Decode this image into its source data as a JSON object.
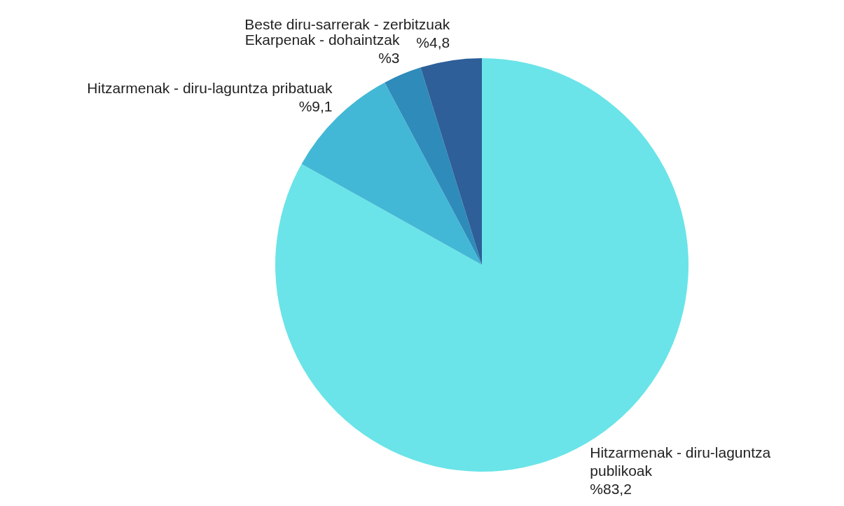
{
  "chart_data": {
    "type": "pie",
    "categories": [
      "Hitzarmenak - diru-laguntza publikoak",
      "Hitzarmenak - diru-laguntza pribatuak",
      "Ekarpenak - dohaintzak",
      "Beste diru-sarrerak - zerbitzuak"
    ],
    "values": [
      83.2,
      9.1,
      3,
      4.8
    ],
    "value_labels": [
      "%83,2",
      "%9,1",
      "%3",
      "%4,8"
    ],
    "colors": [
      "#6ae4e8",
      "#43b8d6",
      "#2e8bba",
      "#2e5f98"
    ]
  }
}
